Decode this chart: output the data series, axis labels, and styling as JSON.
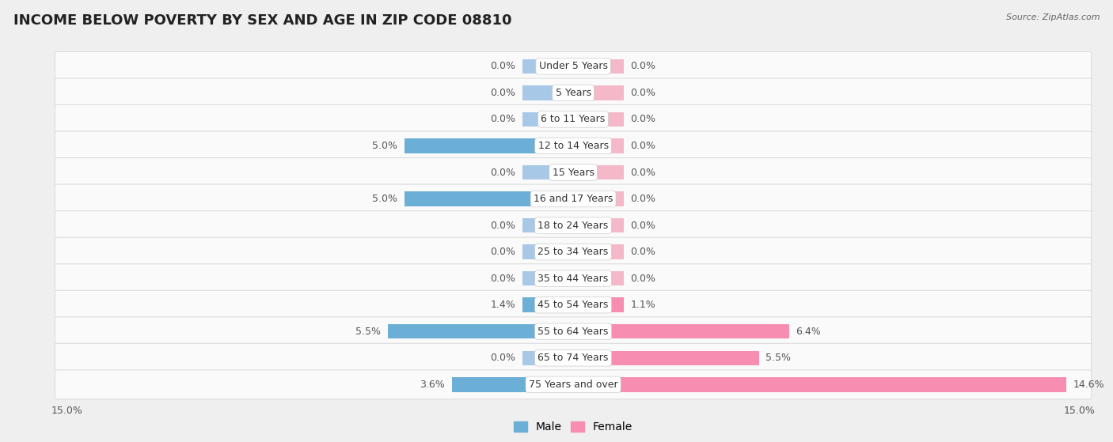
{
  "title": "INCOME BELOW POVERTY BY SEX AND AGE IN ZIP CODE 08810",
  "source": "Source: ZipAtlas.com",
  "categories": [
    "Under 5 Years",
    "5 Years",
    "6 to 11 Years",
    "12 to 14 Years",
    "15 Years",
    "16 and 17 Years",
    "18 to 24 Years",
    "25 to 34 Years",
    "35 to 44 Years",
    "45 to 54 Years",
    "55 to 64 Years",
    "65 to 74 Years",
    "75 Years and over"
  ],
  "male": [
    0.0,
    0.0,
    0.0,
    5.0,
    0.0,
    5.0,
    0.0,
    0.0,
    0.0,
    1.4,
    5.5,
    0.0,
    3.6
  ],
  "female": [
    0.0,
    0.0,
    0.0,
    0.0,
    0.0,
    0.0,
    0.0,
    0.0,
    0.0,
    1.1,
    6.4,
    5.5,
    14.6
  ],
  "male_color_light": "#a8c8e8",
  "male_color_dark": "#6baed6",
  "female_color_light": "#f4b8c8",
  "female_color_dark": "#f78db0",
  "background_color": "#efefef",
  "bar_bg_color": "#fafafa",
  "row_line_color": "#dddddd",
  "xlim": 15.0,
  "min_bar": 1.5,
  "title_fontsize": 13,
  "label_fontsize": 9,
  "value_fontsize": 9,
  "tick_fontsize": 9,
  "bar_height": 0.55,
  "legend_male": "Male",
  "legend_female": "Female"
}
